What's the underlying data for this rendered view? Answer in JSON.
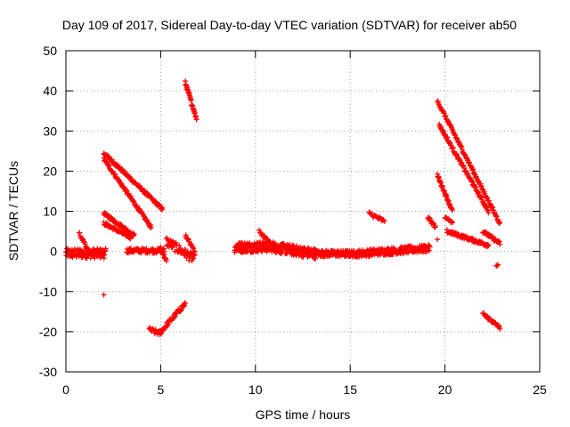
{
  "chart_data": {
    "type": "scatter",
    "title": "Day 109 of 2017, Sidereal Day-to-day VTEC variation (SDTVAR) for receiver ab50",
    "xlabel": "GPS time / hours",
    "ylabel": "SDTVAR / TECUs",
    "xlim": [
      0,
      25
    ],
    "ylim": [
      -30,
      50
    ],
    "xticks": [
      0,
      5,
      10,
      15,
      20,
      25
    ],
    "yticks": [
      -30,
      -20,
      -10,
      0,
      10,
      20,
      30,
      40,
      50
    ],
    "grid": true,
    "marker": "+",
    "color": "#ff0000",
    "segments": [
      {
        "name": "early-baseline",
        "from": [
          0.0,
          -0.5
        ],
        "to": [
          2.1,
          -0.5
        ],
        "points": 120,
        "jitter": 1.2
      },
      {
        "name": "hump-0.7h",
        "from": [
          0.7,
          4.5
        ],
        "to": [
          1.2,
          0.0
        ],
        "points": 20,
        "jitter": 0.5
      },
      {
        "name": "arc-2h-upper",
        "from": [
          2.0,
          24.5
        ],
        "to": [
          5.1,
          10.5
        ],
        "points": 110,
        "jitter": 0.4
      },
      {
        "name": "arc-2h-middle",
        "from": [
          2.0,
          23.0
        ],
        "to": [
          4.5,
          6.0
        ],
        "points": 90,
        "jitter": 0.4
      },
      {
        "name": "arc-2h-lower",
        "from": [
          2.0,
          9.5
        ],
        "to": [
          3.6,
          4.0
        ],
        "points": 60,
        "jitter": 0.4
      },
      {
        "name": "arc-2h-low",
        "from": [
          2.0,
          7.0
        ],
        "to": [
          3.4,
          3.5
        ],
        "points": 50,
        "jitter": 0.4
      },
      {
        "name": "baseline-3-5h",
        "from": [
          3.2,
          0.2
        ],
        "to": [
          5.2,
          0.2
        ],
        "points": 70,
        "jitter": 0.6
      },
      {
        "name": "drop-5h",
        "from": [
          5.0,
          1.0
        ],
        "to": [
          5.3,
          -2.5
        ],
        "points": 15,
        "jitter": 0.4
      },
      {
        "name": "hump-5.5h",
        "from": [
          5.3,
          2.5
        ],
        "to": [
          6.8,
          -2.0
        ],
        "points": 60,
        "jitter": 1.2
      },
      {
        "name": "spike-6.5h",
        "from": [
          6.3,
          4.0
        ],
        "to": [
          6.8,
          0.0
        ],
        "points": 15,
        "jitter": 0.4
      },
      {
        "name": "negative-arc-a",
        "from": [
          4.4,
          -19.5
        ],
        "to": [
          5.0,
          -20.5
        ],
        "points": 20,
        "jitter": 0.6
      },
      {
        "name": "negative-arc-b",
        "from": [
          5.0,
          -20.0
        ],
        "to": [
          6.3,
          -13.0
        ],
        "points": 50,
        "jitter": 0.6
      },
      {
        "name": "steep-6.5h",
        "from": [
          6.3,
          42.0
        ],
        "to": [
          6.9,
          33.0
        ],
        "points": 35,
        "jitter": 0.5
      },
      {
        "name": "isolated-2h",
        "from": [
          2.0,
          -10.8
        ],
        "to": [
          2.0,
          -10.8
        ],
        "points": 1,
        "jitter": 0.0
      },
      {
        "name": "mid-baseline-a",
        "from": [
          8.9,
          1.0
        ],
        "to": [
          11.0,
          1.2
        ],
        "points": 150,
        "jitter": 1.3
      },
      {
        "name": "mid-baseline-b",
        "from": [
          11.0,
          1.0
        ],
        "to": [
          13.2,
          -0.6
        ],
        "points": 160,
        "jitter": 1.3
      },
      {
        "name": "mid-baseline-c",
        "from": [
          13.2,
          -0.5
        ],
        "to": [
          15.5,
          -0.6
        ],
        "points": 140,
        "jitter": 0.8
      },
      {
        "name": "mid-baseline-d",
        "from": [
          15.5,
          -0.5
        ],
        "to": [
          19.2,
          0.8
        ],
        "points": 200,
        "jitter": 0.9
      },
      {
        "name": "bump-10.2h",
        "from": [
          10.2,
          5.0
        ],
        "to": [
          10.8,
          2.0
        ],
        "points": 15,
        "jitter": 0.4
      },
      {
        "name": "step-16.2h",
        "from": [
          16.0,
          9.5
        ],
        "to": [
          16.8,
          7.5
        ],
        "points": 25,
        "jitter": 0.4
      },
      {
        "name": "step-19.2h",
        "from": [
          19.1,
          8.5
        ],
        "to": [
          19.5,
          6.0
        ],
        "points": 15,
        "jitter": 0.4
      },
      {
        "name": "isolated-19.6h",
        "from": [
          19.6,
          3.0
        ],
        "to": [
          19.6,
          3.0
        ],
        "points": 1,
        "jitter": 0.0
      },
      {
        "name": "arc-late-top",
        "from": [
          19.6,
          37.5
        ],
        "to": [
          22.9,
          7.0
        ],
        "points": 120,
        "jitter": 0.4
      },
      {
        "name": "arc-late-second",
        "from": [
          19.7,
          31.5
        ],
        "to": [
          22.3,
          10.0
        ],
        "points": 100,
        "jitter": 0.4
      },
      {
        "name": "arc-late-third",
        "from": [
          19.6,
          19.0
        ],
        "to": [
          20.4,
          10.0
        ],
        "points": 40,
        "jitter": 0.4
      },
      {
        "name": "arc-late-fourth",
        "from": [
          20.0,
          8.5
        ],
        "to": [
          20.4,
          7.0
        ],
        "points": 10,
        "jitter": 0.3
      },
      {
        "name": "arc-late-band",
        "from": [
          20.1,
          5.0
        ],
        "to": [
          22.3,
          1.5
        ],
        "points": 90,
        "jitter": 0.4
      },
      {
        "name": "arc-late-tail",
        "from": [
          22.0,
          5.0
        ],
        "to": [
          22.9,
          2.0
        ],
        "points": 35,
        "jitter": 0.4
      },
      {
        "name": "late-negative",
        "from": [
          22.0,
          -15.5
        ],
        "to": [
          22.9,
          -19.0
        ],
        "points": 35,
        "jitter": 0.4
      },
      {
        "name": "late-isolated",
        "from": [
          22.7,
          -3.5
        ],
        "to": [
          22.8,
          -3.5
        ],
        "points": 3,
        "jitter": 0.2
      }
    ]
  }
}
